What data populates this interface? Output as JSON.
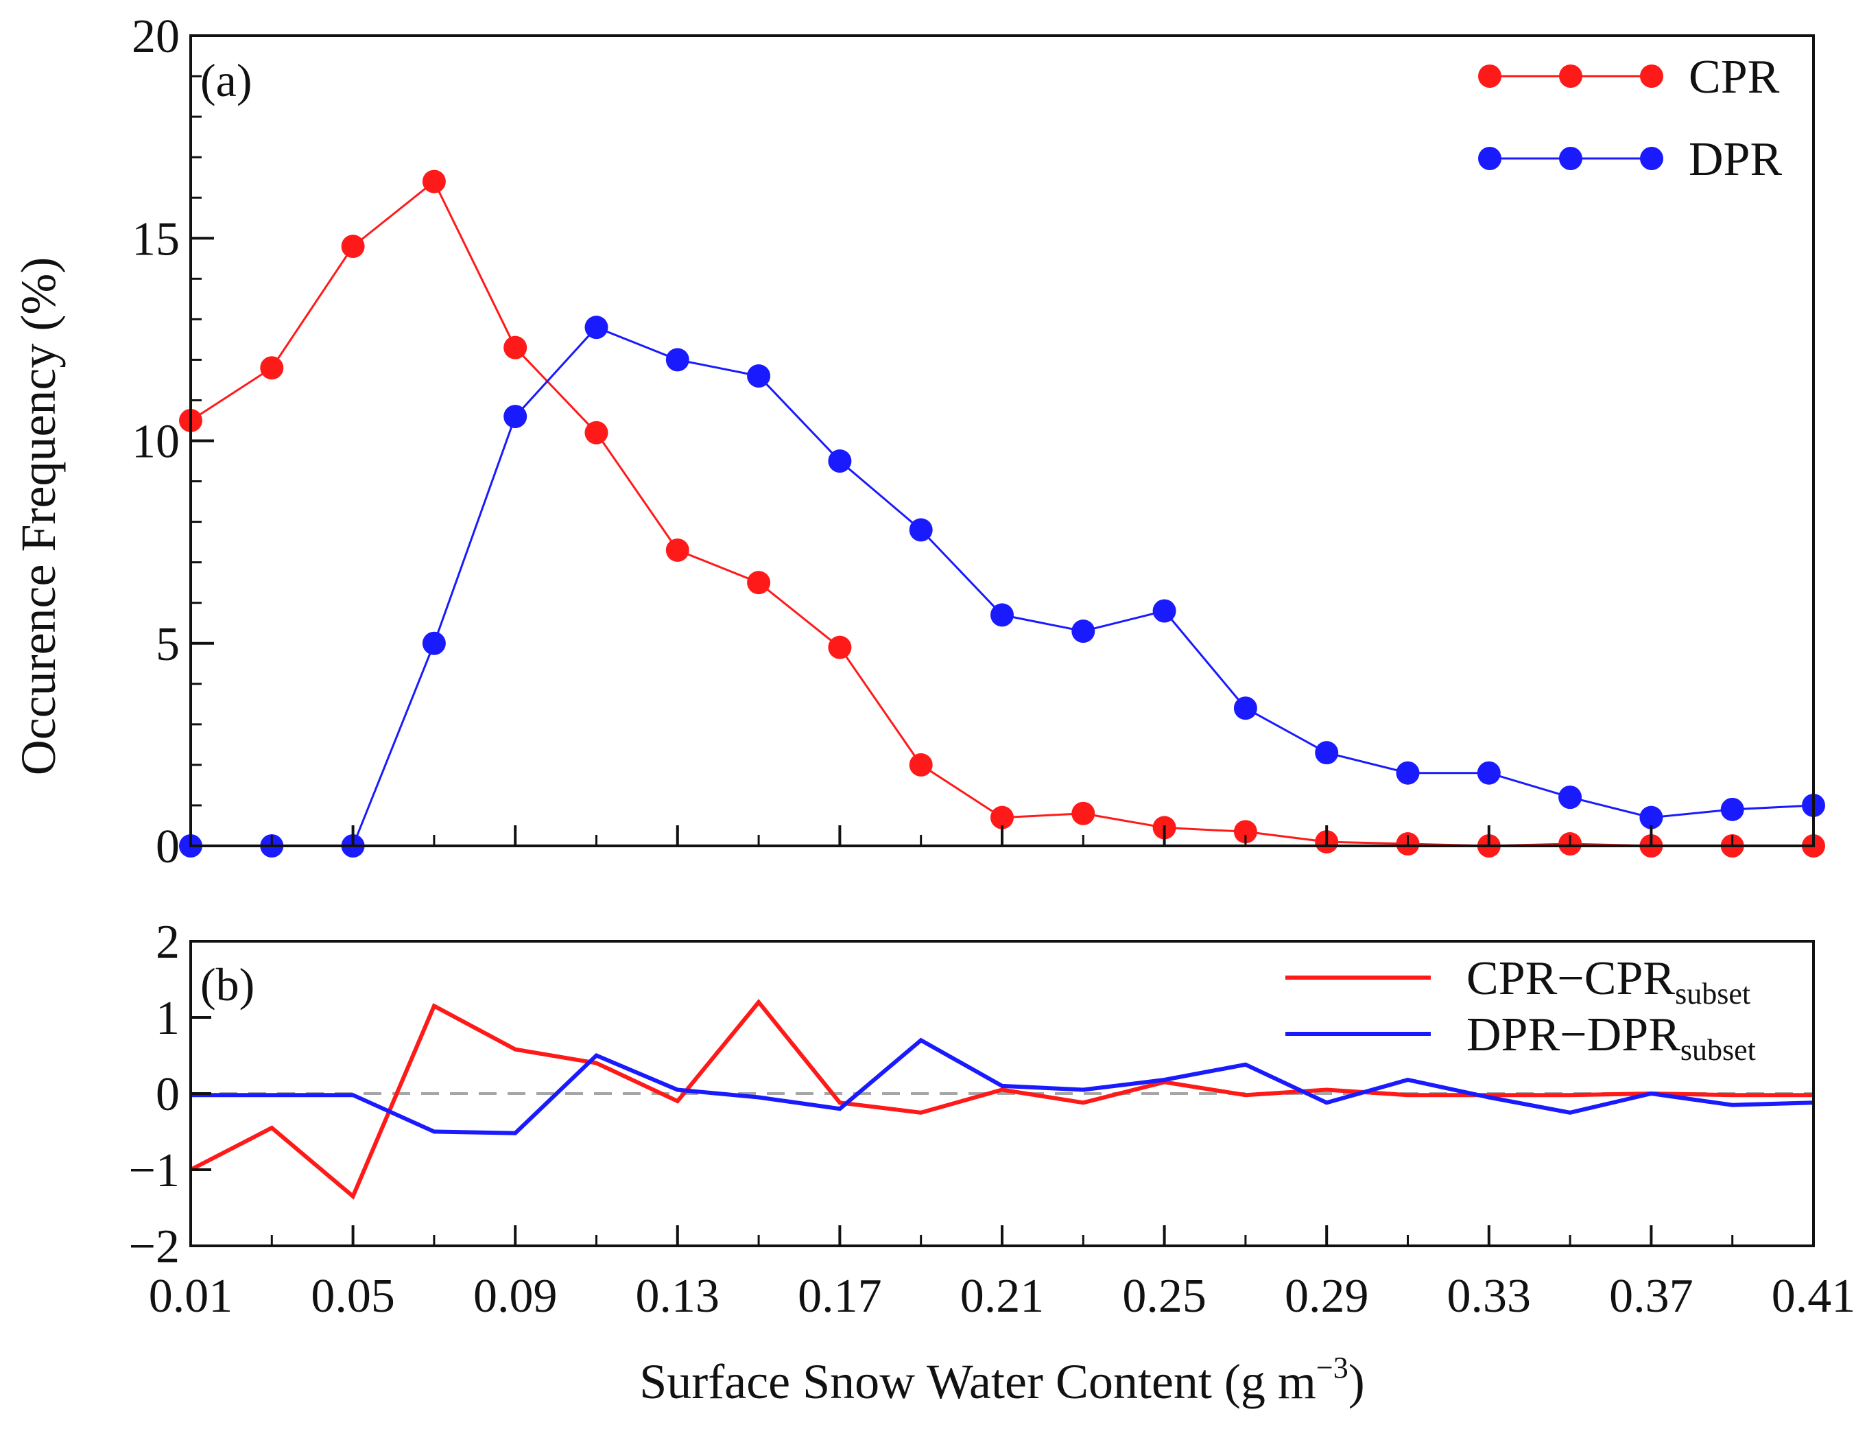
{
  "chart_data": [
    {
      "panel": "(a)",
      "type": "line",
      "ylabel": "Occurence Frequency (%)",
      "ylim": [
        0,
        20
      ],
      "yticks": [
        0,
        5,
        10,
        15,
        20
      ],
      "xlim": [
        0.01,
        0.41
      ],
      "x": [
        0.01,
        0.03,
        0.05,
        0.07,
        0.09,
        0.11,
        0.13,
        0.15,
        0.17,
        0.19,
        0.21,
        0.23,
        0.25,
        0.27,
        0.29,
        0.31,
        0.33,
        0.35,
        0.37,
        0.39,
        0.41
      ],
      "legend_position": "top-right",
      "series": [
        {
          "name": "CPR",
          "color": "#ff1a1a",
          "marker": "circle",
          "values": [
            10.5,
            11.8,
            14.8,
            16.4,
            12.3,
            10.2,
            7.3,
            6.5,
            4.9,
            2.0,
            0.7,
            0.8,
            0.45,
            0.35,
            0.1,
            0.05,
            0.0,
            0.05,
            0.0,
            0.0,
            0.0
          ]
        },
        {
          "name": "DPR",
          "color": "#1a1aff",
          "marker": "circle",
          "values": [
            0.0,
            0.0,
            0.0,
            5.0,
            10.6,
            12.8,
            12.0,
            11.6,
            9.5,
            7.8,
            5.7,
            5.3,
            5.8,
            3.4,
            2.3,
            1.8,
            1.8,
            1.2,
            0.7,
            0.9,
            1.0
          ]
        }
      ]
    },
    {
      "panel": "(b)",
      "type": "line",
      "ylim": [
        -2,
        2
      ],
      "yticks": [
        -2,
        -1,
        0,
        1,
        2
      ],
      "ytick_labels": [
        "−2",
        "−1",
        "0",
        "1",
        "2"
      ],
      "xlim": [
        0.01,
        0.41
      ],
      "xticks": [
        0.01,
        0.05,
        0.09,
        0.13,
        0.17,
        0.21,
        0.25,
        0.29,
        0.33,
        0.37,
        0.41
      ],
      "xtick_labels": [
        "0.01",
        "0.05",
        "0.09",
        "0.13",
        "0.17",
        "0.21",
        "0.25",
        "0.29",
        "0.33",
        "0.37",
        "0.41"
      ],
      "xlabel": "Surface Snow Water Content (g m",
      "xlabel_sup": "−3",
      "xlabel_end": ")",
      "reference_line": 0,
      "x": [
        0.01,
        0.03,
        0.05,
        0.07,
        0.09,
        0.11,
        0.13,
        0.15,
        0.17,
        0.19,
        0.21,
        0.23,
        0.25,
        0.27,
        0.29,
        0.31,
        0.33,
        0.35,
        0.37,
        0.39,
        0.41
      ],
      "legend_position": "top-right",
      "series": [
        {
          "name": "CPR−CPR",
          "name_sub": "subset",
          "color": "#ff1a1a",
          "values": [
            -1.0,
            -0.45,
            -1.35,
            1.15,
            0.58,
            0.4,
            -0.1,
            1.2,
            -0.12,
            -0.25,
            0.05,
            -0.12,
            0.15,
            -0.02,
            0.05,
            -0.02,
            -0.02,
            -0.02,
            0.0,
            -0.02,
            -0.02
          ]
        },
        {
          "name": "DPR−DPR",
          "name_sub": "subset",
          "color": "#1a1aff",
          "values": [
            -0.02,
            -0.02,
            -0.02,
            -0.5,
            -0.52,
            0.5,
            0.05,
            -0.05,
            -0.2,
            0.7,
            0.1,
            0.05,
            0.18,
            0.38,
            -0.12,
            0.18,
            -0.05,
            -0.25,
            0.0,
            -0.15,
            -0.12
          ]
        }
      ]
    }
  ]
}
